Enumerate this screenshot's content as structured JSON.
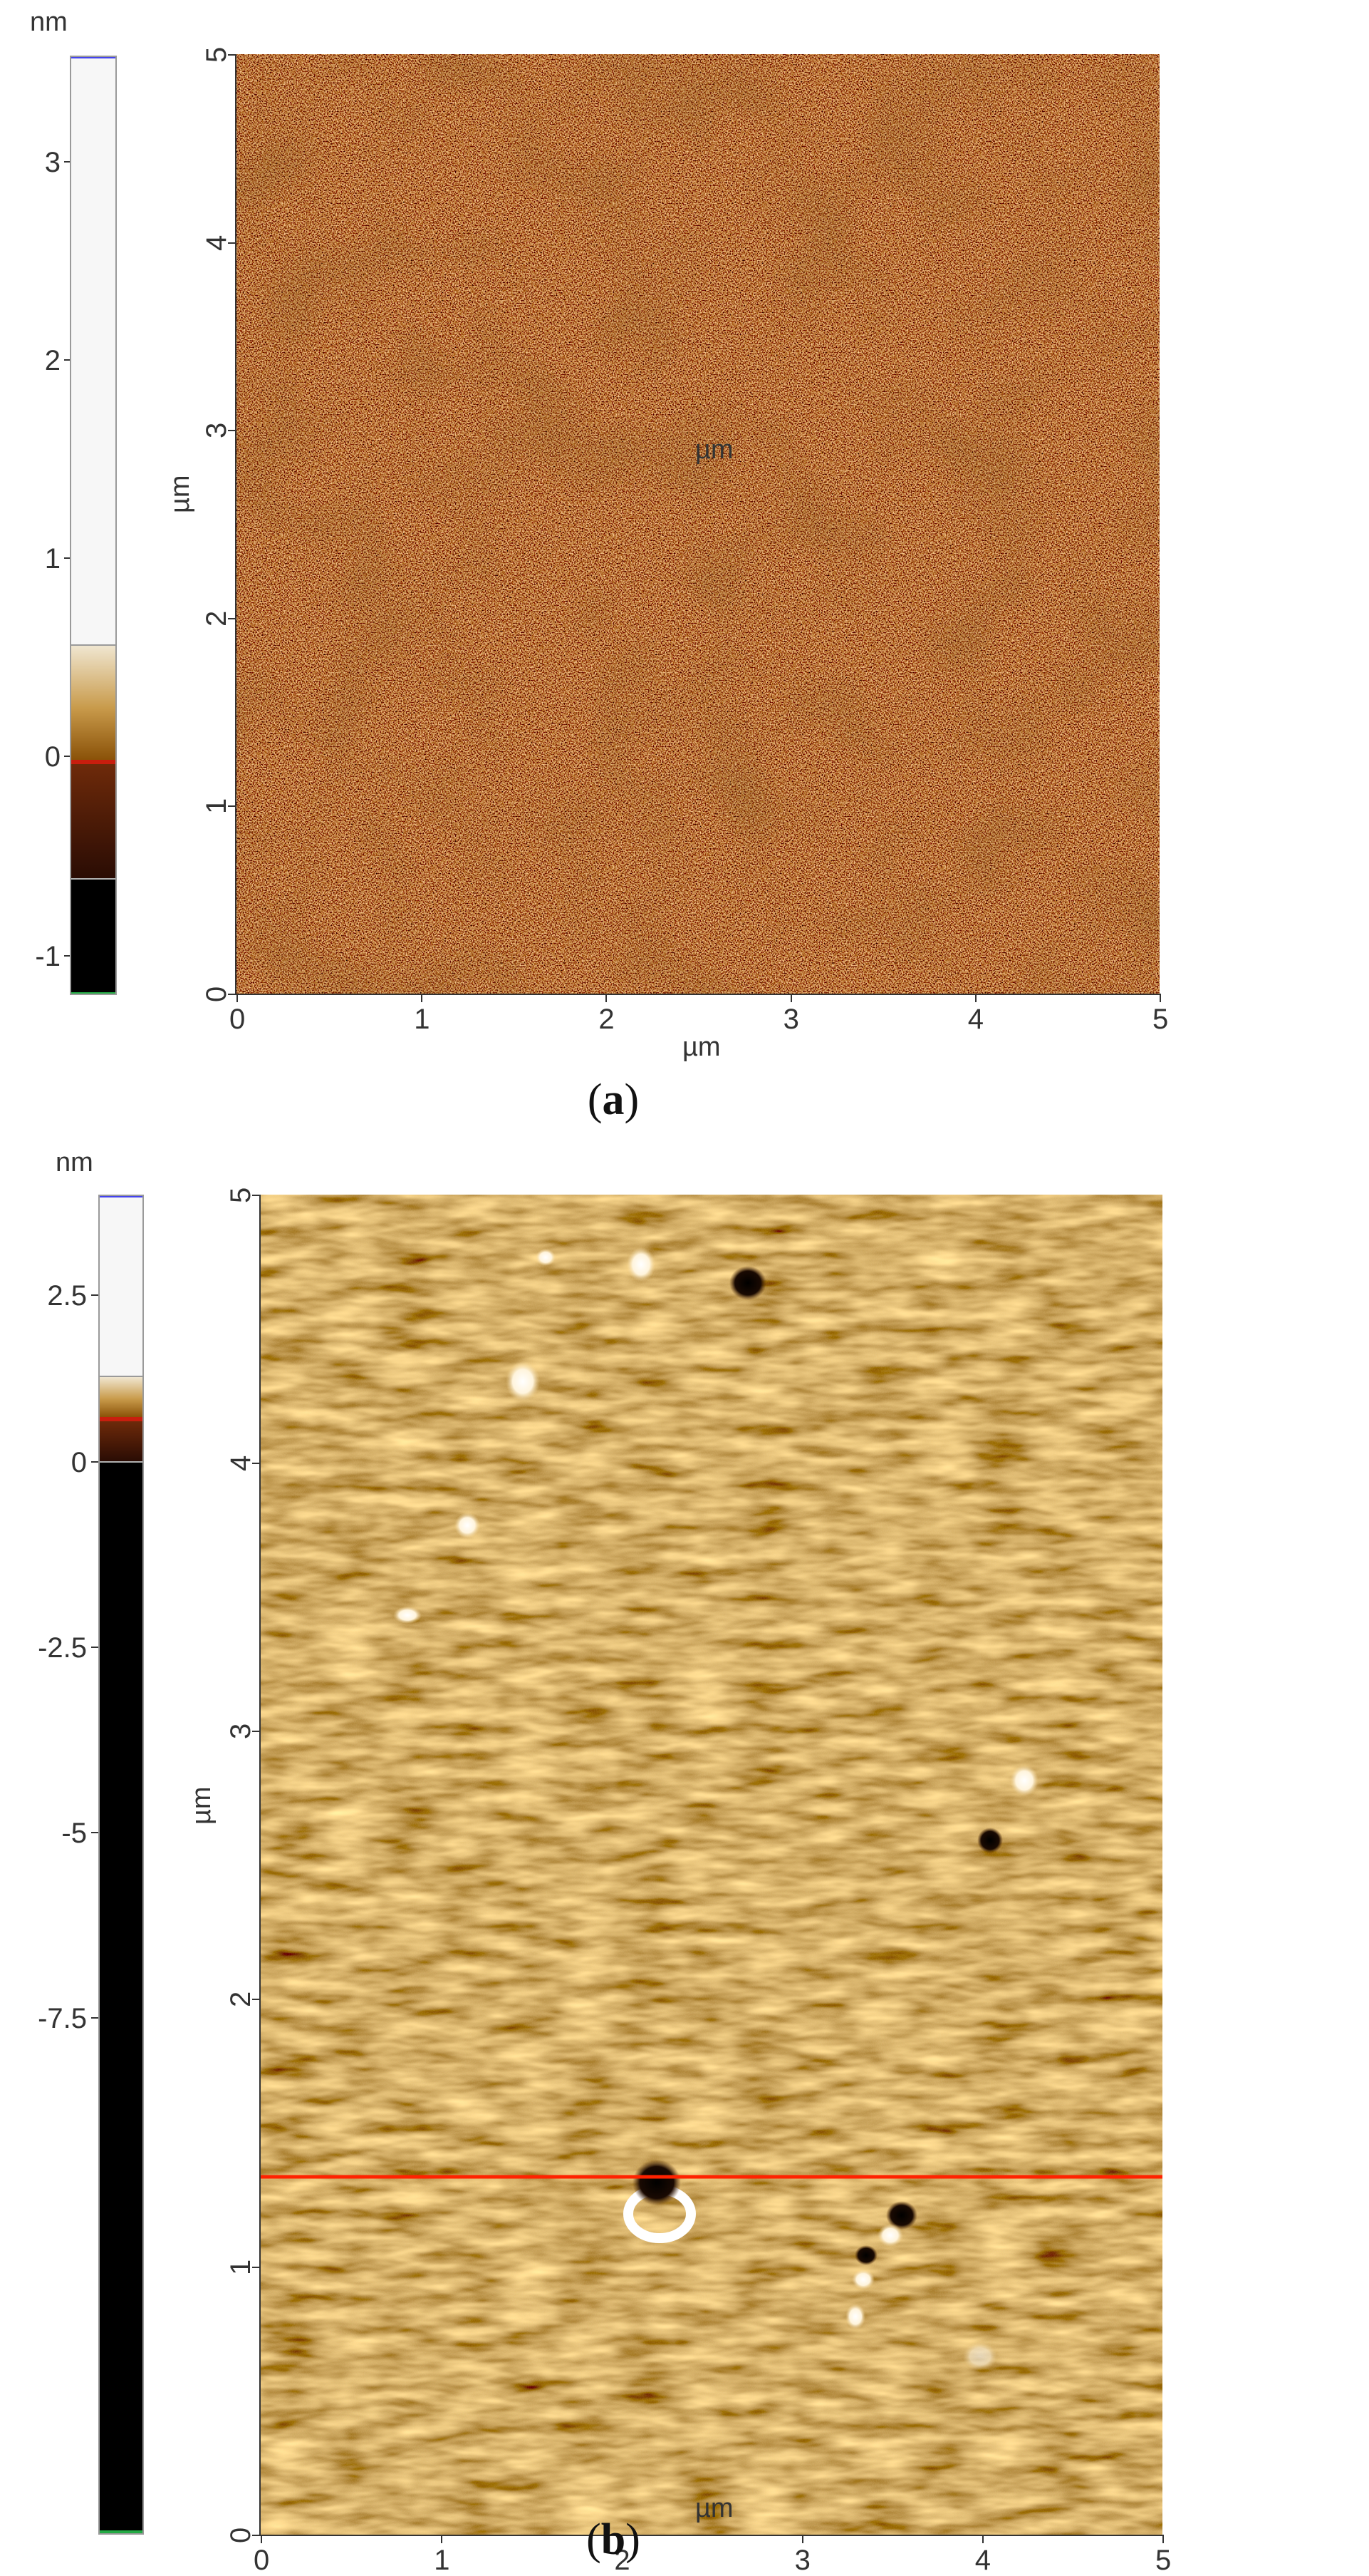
{
  "panels": [
    {
      "caption_prefix": "(",
      "caption_letter": "a",
      "caption_suffix": ")",
      "scale_unit": "nm",
      "scale_ticks": [
        "3",
        "2",
        "1",
        "0",
        "-1"
      ],
      "image_y_ticks": [
        "5",
        "4",
        "3",
        "2",
        "1",
        "0"
      ],
      "image_x_ticks": [
        "0",
        "1",
        "2",
        "3",
        "4",
        "5"
      ],
      "x_unit": "µm",
      "y_unit": "µm"
    },
    {
      "caption_prefix": "(",
      "caption_letter": "b",
      "caption_suffix": ")",
      "scale_unit": "nm",
      "scale_ticks": [
        "2.5",
        "0",
        "-2.5",
        "-5",
        "-7.5"
      ],
      "image_y_ticks": [
        "5",
        "4",
        "3",
        "2",
        "1",
        "0"
      ],
      "image_x_ticks": [
        "0",
        "1",
        "2",
        "3",
        "4",
        "5"
      ],
      "x_unit": "µm",
      "y_unit": "µm"
    }
  ]
}
